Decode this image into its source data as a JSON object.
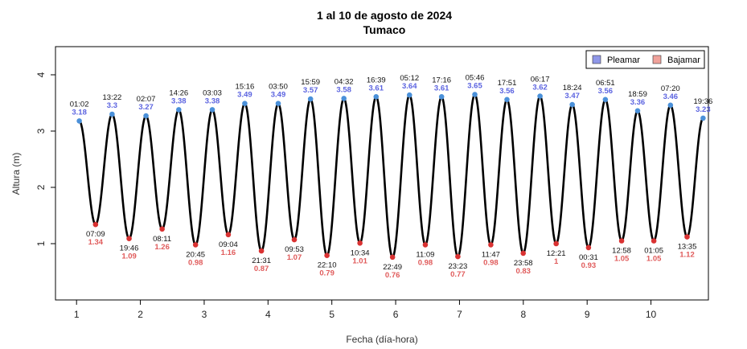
{
  "chart_data": {
    "type": "line",
    "title": "1 al 10 de agosto de 2024",
    "subtitle": "Tumaco",
    "xlabel": "Fecha (día-hora)",
    "ylabel": "Altura (m)",
    "xlim": [
      0.67,
      10.9
    ],
    "ylim": [
      0,
      4.5
    ],
    "x_ticks": [
      1,
      2,
      3,
      4,
      5,
      6,
      7,
      8,
      9,
      10
    ],
    "y_ticks": [
      1,
      2,
      3,
      4
    ],
    "legend": {
      "position": "top-right",
      "entries": [
        {
          "name": "Pleamar",
          "color": "#8f97e8"
        },
        {
          "name": "Bajamar",
          "color": "#f0a29b"
        }
      ]
    },
    "colors": {
      "curve": "#000000",
      "high_point": "#4a90d9",
      "low_point": "#d93232",
      "high_text": "#5b63e0",
      "low_text": "#e05b5b"
    },
    "events": [
      {
        "type": "high",
        "day": 1,
        "time": "01:02",
        "height": 3.18,
        "height_label": "3.18"
      },
      {
        "type": "low",
        "day": 1,
        "time": "07:09",
        "height": 1.34,
        "height_label": "1.34"
      },
      {
        "type": "high",
        "day": 1,
        "time": "13:22",
        "height": 3.3,
        "height_label": "3.3"
      },
      {
        "type": "low",
        "day": 1,
        "time": "19:46",
        "height": 1.09,
        "height_label": "1.09"
      },
      {
        "type": "high",
        "day": 2,
        "time": "02:07",
        "height": 3.27,
        "height_label": "3.27"
      },
      {
        "type": "low",
        "day": 2,
        "time": "08:11",
        "height": 1.26,
        "height_label": "1.26"
      },
      {
        "type": "high",
        "day": 2,
        "time": "14:26",
        "height": 3.38,
        "height_label": "3.38"
      },
      {
        "type": "low",
        "day": 2,
        "time": "20:45",
        "height": 0.98,
        "height_label": "0.98"
      },
      {
        "type": "high",
        "day": 3,
        "time": "03:03",
        "height": 3.38,
        "height_label": "3.38"
      },
      {
        "type": "low",
        "day": 3,
        "time": "09:04",
        "height": 1.16,
        "height_label": "1.16"
      },
      {
        "type": "high",
        "day": 3,
        "time": "15:16",
        "height": 3.49,
        "height_label": "3.49"
      },
      {
        "type": "low",
        "day": 3,
        "time": "21:31",
        "height": 0.87,
        "height_label": "0.87"
      },
      {
        "type": "high",
        "day": 4,
        "time": "03:50",
        "height": 3.49,
        "height_label": "3.49"
      },
      {
        "type": "low",
        "day": 4,
        "time": "09:53",
        "height": 1.07,
        "height_label": "1.07"
      },
      {
        "type": "high",
        "day": 4,
        "time": "15:59",
        "height": 3.57,
        "height_label": "3.57"
      },
      {
        "type": "low",
        "day": 4,
        "time": "22:10",
        "height": 0.79,
        "height_label": "0.79"
      },
      {
        "type": "high",
        "day": 5,
        "time": "04:32",
        "height": 3.58,
        "height_label": "3.58"
      },
      {
        "type": "low",
        "day": 5,
        "time": "10:34",
        "height": 1.01,
        "height_label": "1.01"
      },
      {
        "type": "high",
        "day": 5,
        "time": "16:39",
        "height": 3.61,
        "height_label": "3.61"
      },
      {
        "type": "low",
        "day": 5,
        "time": "22:49",
        "height": 0.76,
        "height_label": "0.76"
      },
      {
        "type": "high",
        "day": 6,
        "time": "05:12",
        "height": 3.64,
        "height_label": "3.64"
      },
      {
        "type": "low",
        "day": 6,
        "time": "11:09",
        "height": 0.98,
        "height_label": "0.98"
      },
      {
        "type": "high",
        "day": 6,
        "time": "17:16",
        "height": 3.61,
        "height_label": "3.61"
      },
      {
        "type": "low",
        "day": 6,
        "time": "23:23",
        "height": 0.77,
        "height_label": "0.77"
      },
      {
        "type": "high",
        "day": 7,
        "time": "05:46",
        "height": 3.65,
        "height_label": "3.65"
      },
      {
        "type": "low",
        "day": 7,
        "time": "11:47",
        "height": 0.98,
        "height_label": "0.98"
      },
      {
        "type": "high",
        "day": 7,
        "time": "17:51",
        "height": 3.56,
        "height_label": "3.56"
      },
      {
        "type": "low",
        "day": 7,
        "time": "23:58",
        "height": 0.83,
        "height_label": "0.83"
      },
      {
        "type": "high",
        "day": 8,
        "time": "06:17",
        "height": 3.62,
        "height_label": "3.62"
      },
      {
        "type": "low",
        "day": 8,
        "time": "12:21",
        "height": 1,
        "height_label": "1"
      },
      {
        "type": "high",
        "day": 8,
        "time": "18:24",
        "height": 3.47,
        "height_label": "3.47"
      },
      {
        "type": "low",
        "day": 9,
        "time": "00:31",
        "height": 0.93,
        "height_label": "0.93"
      },
      {
        "type": "high",
        "day": 9,
        "time": "06:51",
        "height": 3.56,
        "height_label": "3.56"
      },
      {
        "type": "low",
        "day": 9,
        "time": "12:58",
        "height": 1.05,
        "height_label": "1.05"
      },
      {
        "type": "high",
        "day": 9,
        "time": "18:59",
        "height": 3.36,
        "height_label": "3.36"
      },
      {
        "type": "low",
        "day": 10,
        "time": "01:05",
        "height": 1.05,
        "height_label": "1.05"
      },
      {
        "type": "high",
        "day": 10,
        "time": "07:20",
        "height": 3.46,
        "height_label": "3.46"
      },
      {
        "type": "low",
        "day": 10,
        "time": "13:35",
        "height": 1.12,
        "height_label": "1.12"
      },
      {
        "type": "high",
        "day": 10,
        "time": "19:36",
        "height": 3.23,
        "height_label": "3.23"
      }
    ]
  }
}
